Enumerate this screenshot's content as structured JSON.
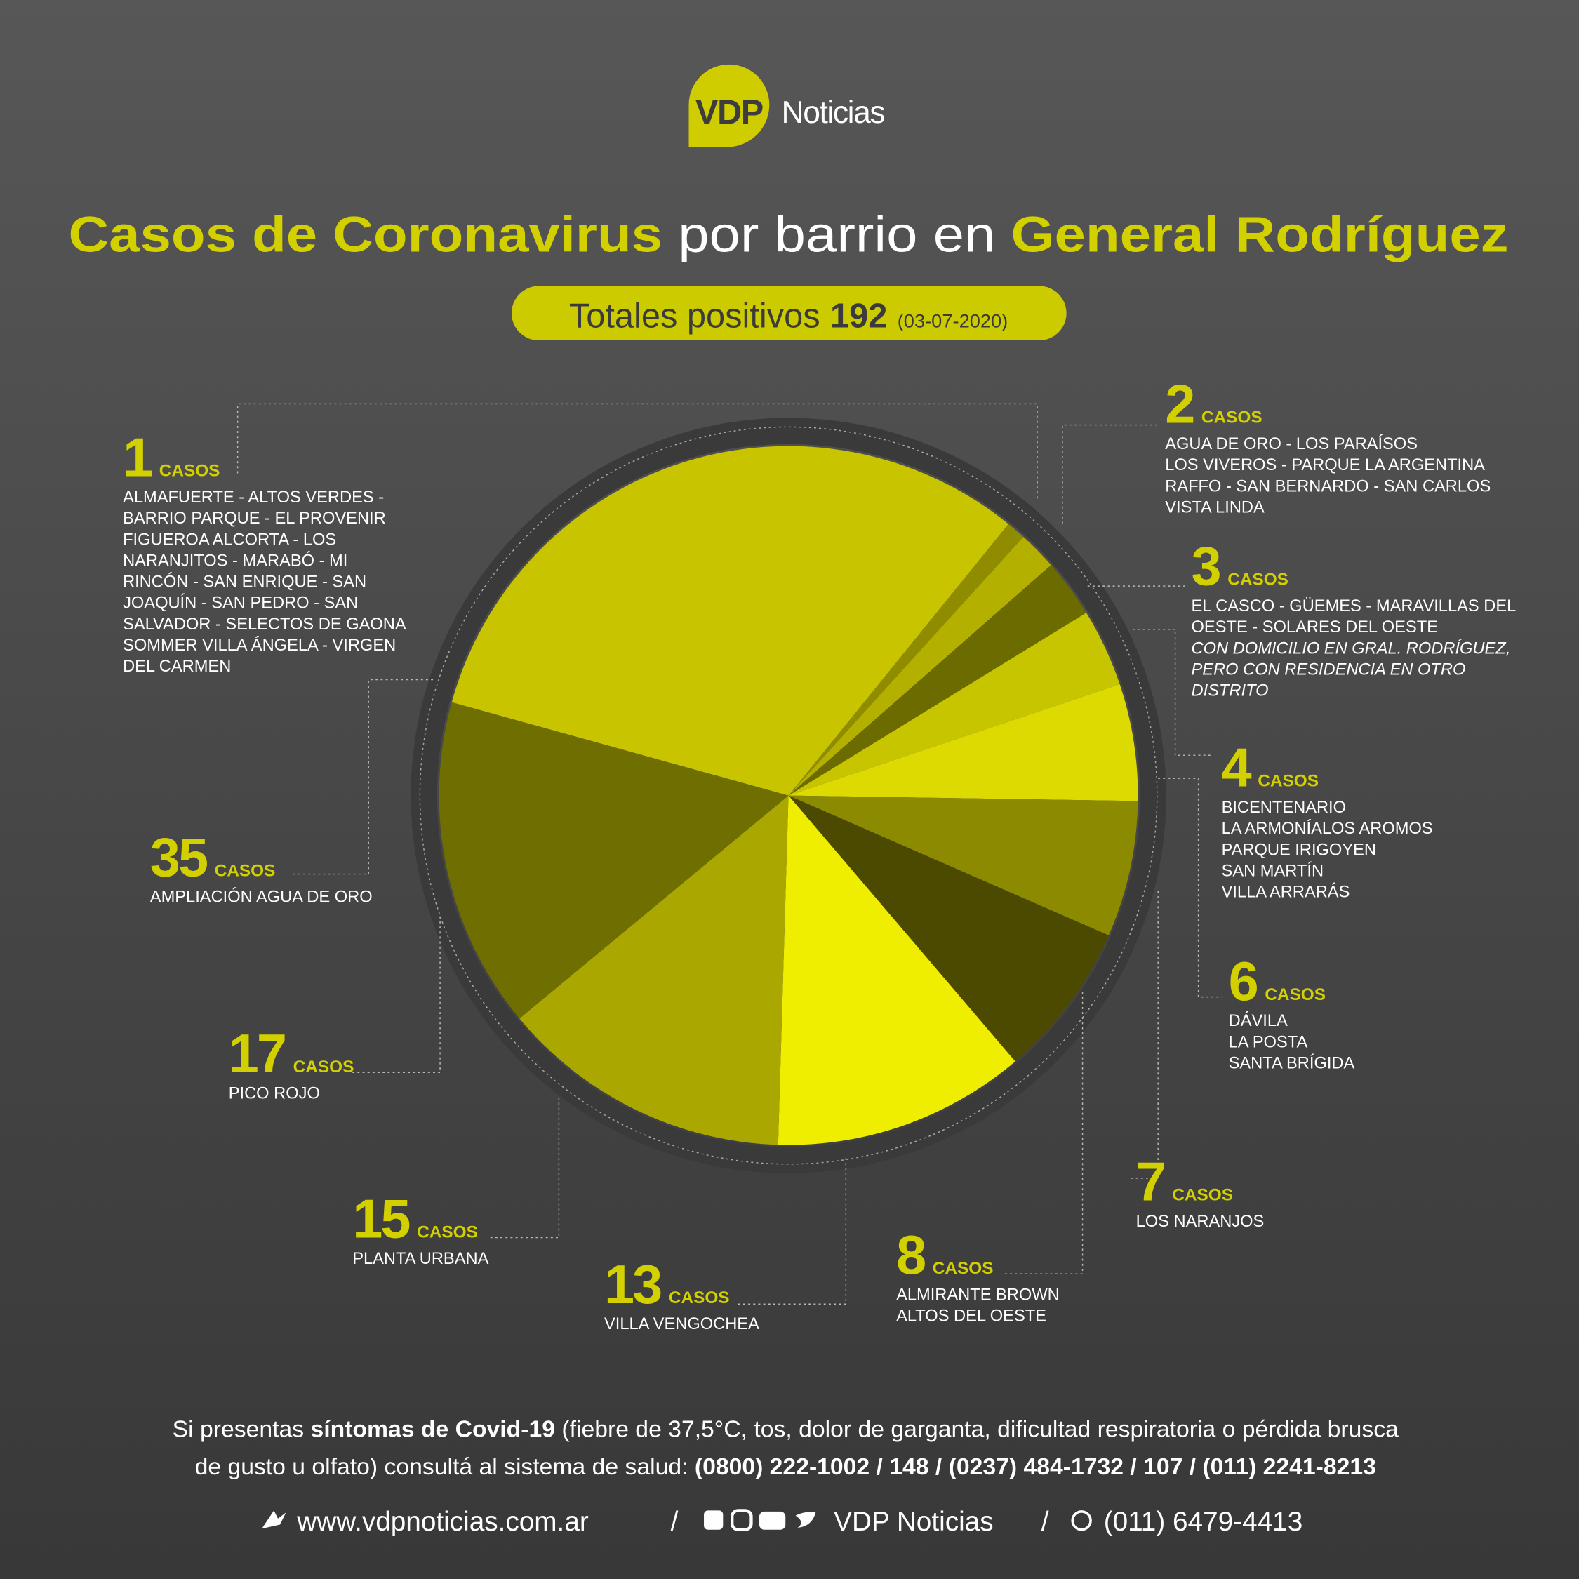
{
  "logo": {
    "mark": "VDP",
    "name": "Noticias"
  },
  "chart_data": {
    "type": "pie",
    "title": [
      {
        "text": "Casos de Coronavirus",
        "bold": true
      },
      {
        "text": " por barrio en ",
        "bold": false
      },
      {
        "text": "General Rodríguez",
        "bold": true
      }
    ],
    "subtitle": {
      "text": "Totales positivos",
      "total": 192,
      "date": "(03-07-2020)"
    },
    "unit": "CASOS",
    "values": [
      1,
      2,
      3,
      4,
      6,
      7,
      8,
      13,
      15,
      17,
      35
    ],
    "colors": [
      "#8f8c00",
      "#b3b000",
      "#6c6b00",
      "#c7c400",
      "#dcda00",
      "#8c8a00",
      "#4b4a00",
      "#efed00",
      "#aaa700",
      "#6f6e00",
      "#c8c500"
    ],
    "labels": [
      {
        "lines": [
          "ALMAFUERTE - ALTOS VERDES -",
          "BARRIO PARQUE - EL PROVENIR",
          "FIGUEROA ALCORTA - LOS",
          "NARANJITOS - MARABÓ - MI",
          "RINCÓN - SAN ENRIQUE - SAN",
          "JOAQUÍN - SAN PEDRO - SAN",
          "SALVADOR - SELECTOS DE GAONA",
          "SOMMER VILLA ÁNGELA - VIRGEN",
          "DEL CARMEN"
        ]
      },
      {
        "lines": [
          "AGUA DE ORO - LOS PARAÍSOS",
          "LOS VIVEROS - PARQUE LA ARGENTINA",
          "RAFFO - SAN BERNARDO - SAN CARLOS",
          "VISTA LINDA"
        ]
      },
      {
        "lines": [
          "EL CASCO - GÜEMES - MARAVILLAS DEL",
          "OESTE - SOLARES DEL OESTE"
        ],
        "note": [
          "CON DOMICILIO EN GRAL. RODRÍGUEZ,",
          "PERO CON RESIDENCIA EN OTRO",
          "DISTRITO"
        ]
      },
      {
        "lines": [
          "BICENTENARIO",
          "LA ARMONÍALOS AROMOS",
          "PARQUE IRIGOYEN",
          "SAN MARTÍN",
          "VILLA ARRARÁS"
        ]
      },
      {
        "lines": [
          "DÁVILA",
          "LA POSTA",
          "SANTA BRÍGIDA"
        ]
      },
      {
        "lines": [
          "LOS NARANJOS"
        ]
      },
      {
        "lines": [
          "ALMIRANTE BROWN",
          "ALTOS DEL OESTE"
        ]
      },
      {
        "lines": [
          "VILLA VENGOCHEA"
        ]
      },
      {
        "lines": [
          "PLANTA URBANA"
        ]
      },
      {
        "lines": [
          "PICO ROJO"
        ]
      },
      {
        "lines": [
          "AMPLIACIÓN AGUA DE ORO"
        ]
      }
    ]
  },
  "footer": {
    "lines": [
      [
        {
          "text": "Si presentas ",
          "bold": false
        },
        {
          "text": "síntomas de Covid-19",
          "bold": true
        },
        {
          "text": " (fiebre de 37,5°C, tos, dolor de garganta, dificultad respiratoria o pérdida brusca",
          "bold": false
        }
      ],
      [
        {
          "text": "de gusto u olfato) consultá al sistema de salud: ",
          "bold": false
        },
        {
          "text": "(0800) 222-1002 / 148 / (0237) 484-1732 / 107 / (011) 2241-8213",
          "bold": true
        }
      ]
    ],
    "web": "www.vdpnoticias.com.ar",
    "separator": "/",
    "social": "VDP Noticias",
    "phone": "(011) 6479-4413"
  }
}
